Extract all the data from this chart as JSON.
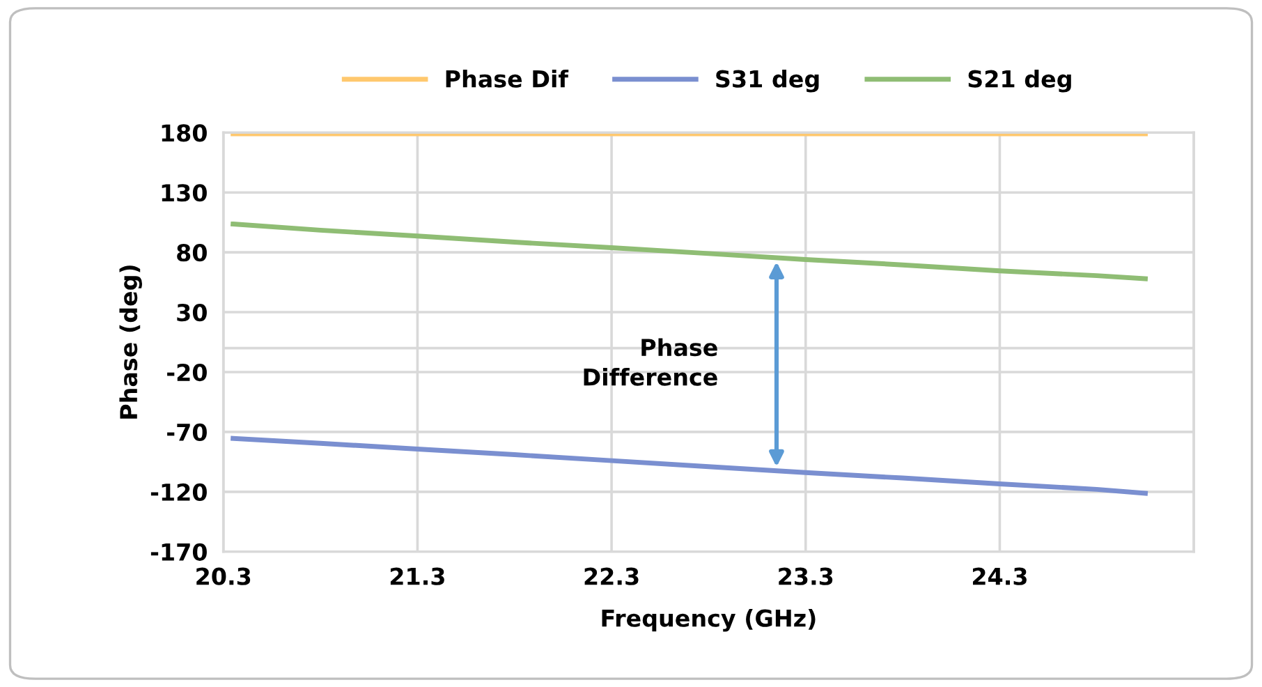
{
  "chart_data": {
    "type": "line",
    "xlabel": "Frequency (GHz)",
    "ylabel": "Phase (deg)",
    "x": [
      20.35,
      20.8,
      21.3,
      21.8,
      22.3,
      22.8,
      23.3,
      23.8,
      24.3,
      24.8,
      25.05
    ],
    "series": [
      {
        "name": "Phase Dif",
        "color": "#ffc86e",
        "values": [
          179,
          179,
          179,
          179,
          179,
          179,
          179,
          179,
          179,
          179,
          179
        ]
      },
      {
        "name": "S31 deg",
        "color": "#7a8fd0",
        "values": [
          -75.4,
          -79.5,
          -84.3,
          -89,
          -94,
          -99,
          -104,
          -108.5,
          -113.4,
          -118,
          -121.2
        ]
      },
      {
        "name": "S21 deg",
        "color": "#8fbd74",
        "values": [
          103.6,
          98.5,
          93.6,
          88.5,
          83.9,
          79,
          74,
          69.5,
          64.5,
          60.5,
          58
        ]
      }
    ],
    "xlim": [
      20.3,
      25.3
    ],
    "xticks": [
      20.3,
      21.3,
      22.3,
      23.3,
      24.3,
      {
        "value": 25.3,
        "label": null
      }
    ],
    "ylim": [
      -170,
      180
    ],
    "yticks": [
      -170,
      -120,
      -70,
      -20,
      {
        "value": 0,
        "label": null
      },
      30,
      80,
      130,
      180
    ],
    "annotations": [
      "Phase\nDifference"
    ],
    "grid": true,
    "legend": "top",
    "marker": "none",
    "line_style": "solid"
  }
}
